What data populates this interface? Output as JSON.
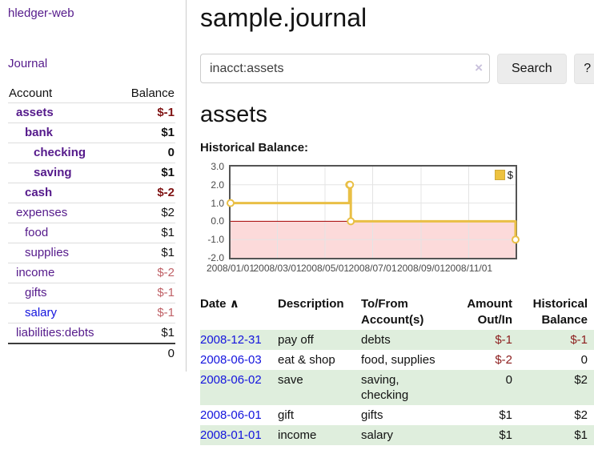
{
  "sidebar": {
    "brand": "hledger-web",
    "nav_journal": "Journal",
    "accounts_header": {
      "account": "Account",
      "balance": "Balance"
    },
    "accounts": [
      {
        "name": "assets",
        "level": 1,
        "bold": true,
        "balance": "$-1",
        "balance_style": "neg"
      },
      {
        "name": "bank",
        "level": 2,
        "bold": true,
        "balance": "$1",
        "balance_style": ""
      },
      {
        "name": "checking",
        "level": 3,
        "bold": true,
        "balance": "0",
        "balance_style": ""
      },
      {
        "name": "saving",
        "level": 3,
        "bold": true,
        "balance": "$1",
        "balance_style": ""
      },
      {
        "name": "cash",
        "level": 2,
        "bold": true,
        "balance": "$-2",
        "balance_style": "neg"
      },
      {
        "name": "expenses",
        "level": 1,
        "bold": false,
        "balance": "$2",
        "balance_style": ""
      },
      {
        "name": "food",
        "level": 2,
        "bold": false,
        "balance": "$1",
        "balance_style": ""
      },
      {
        "name": "supplies",
        "level": 2,
        "bold": false,
        "balance": "$1",
        "balance_style": ""
      },
      {
        "name": "income",
        "level": 1,
        "bold": false,
        "balance": "$-2",
        "balance_style": "neg-light"
      },
      {
        "name": "gifts",
        "level": 2,
        "bold": false,
        "balance": "$-1",
        "balance_style": "neg-light"
      },
      {
        "name": "salary",
        "level": 2,
        "bold": false,
        "balance": "$-1",
        "balance_style": "neg-light",
        "link_color": "blue"
      },
      {
        "name": "liabilities:debts",
        "level": 1,
        "bold": false,
        "balance": "$1",
        "balance_style": ""
      }
    ],
    "total": "0"
  },
  "header": {
    "title": "sample.journal"
  },
  "search": {
    "value": "inacct:assets",
    "clear_icon": "×",
    "button_label": "Search",
    "help_label": "?"
  },
  "account_page": {
    "title": "assets",
    "chart_heading": "Historical Balance:"
  },
  "chart_data": {
    "type": "line",
    "title": "Historical Balance:",
    "legend": [
      {
        "label": "$",
        "color": "#edc240"
      }
    ],
    "legend_position": "top-right",
    "grid": true,
    "step": true,
    "xlim_days": [
      0,
      365
    ],
    "ylim": [
      -2.0,
      3.0
    ],
    "yticks": [
      {
        "v": 3,
        "label": "3.0"
      },
      {
        "v": 2,
        "label": "2.0"
      },
      {
        "v": 1,
        "label": "1.0"
      },
      {
        "v": 0,
        "label": "0.0"
      },
      {
        "v": -1,
        "label": "-1.0"
      },
      {
        "v": -2,
        "label": "-2.0"
      }
    ],
    "xticks": [
      {
        "days": 0,
        "label": "2008/01/01"
      },
      {
        "days": 60,
        "label": "2008/03/01"
      },
      {
        "days": 121,
        "label": "2008/05/01"
      },
      {
        "days": 182,
        "label": "2008/07/01"
      },
      {
        "days": 244,
        "label": "2008/09/01"
      },
      {
        "days": 305,
        "label": "2008/11/01"
      }
    ],
    "series": [
      {
        "name": "$",
        "points": [
          {
            "date": "2008-01-01",
            "days": 0,
            "value": 1
          },
          {
            "date": "2008-06-01",
            "days": 152,
            "value": 2
          },
          {
            "date": "2008-06-02",
            "days": 153,
            "value": 2
          },
          {
            "date": "2008-06-03",
            "days": 154,
            "value": 0
          },
          {
            "date": "2008-12-31",
            "days": 365,
            "value": -1
          }
        ]
      }
    ],
    "line_color": "#e9bf45",
    "marker_fill": "#ffffff",
    "grid_color": "#e4e4e4",
    "plot_border_color": "#545454",
    "negative_region_fill": "#fcdada",
    "zero_line_color": "#a40000"
  },
  "register": {
    "sort_icon": "∧",
    "columns": [
      {
        "line1": "Date",
        "line2": "",
        "align": "left",
        "sorted": true
      },
      {
        "line1": "Description",
        "line2": "",
        "align": "left"
      },
      {
        "line1": "To/From",
        "line2": "Account(s)",
        "align": "left"
      },
      {
        "line1": "Amount",
        "line2": "Out/In",
        "align": "right"
      },
      {
        "line1": "Historical",
        "line2": "Balance",
        "align": "right"
      }
    ],
    "rows": [
      {
        "date": "2008-12-31",
        "description": "pay off",
        "accounts": "debts",
        "amount": "$-1",
        "balance": "$-1"
      },
      {
        "date": "2008-06-03",
        "description": "eat & shop",
        "accounts": "food, supplies",
        "amount": "$-2",
        "balance": "0"
      },
      {
        "date": "2008-06-02",
        "description": "save",
        "accounts": "saving, checking",
        "amount": "0",
        "balance": "$2"
      },
      {
        "date": "2008-06-01",
        "description": "gift",
        "accounts": "gifts",
        "amount": "$1",
        "balance": "$2"
      },
      {
        "date": "2008-01-01",
        "description": "income",
        "accounts": "salary",
        "amount": "$1",
        "balance": "$1"
      }
    ]
  },
  "colors": {
    "link_purple": "#551a8b",
    "link_blue": "#1414dd",
    "negative_strong": "#7f1212",
    "negative_light": "#bf6066",
    "row_stripe_green": "#dfeedd",
    "chart_gold": "#e9bf45"
  }
}
